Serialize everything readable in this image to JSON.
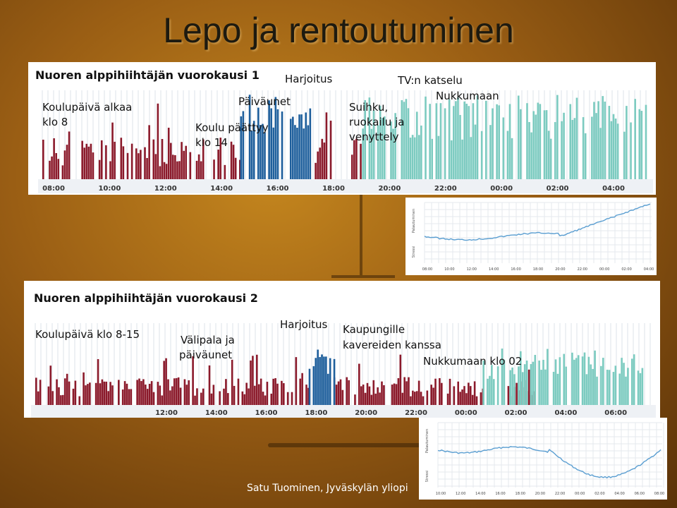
{
  "slide": {
    "title": "Lepo ja rentoutuminen",
    "footer": "Satu Tuominen, Jyväskylän yliopi"
  },
  "chart1": {
    "title": "Nuoren alppihiihtäjän vuorokausi 1",
    "annotations": {
      "school_start_line1": "Koulupäivä alkaa",
      "school_start_line2": "klo 8",
      "nap": "Päiväunet",
      "school_end_line1": "Koulu päättyy",
      "school_end_line2": "klo 14",
      "training": "Harjoitus",
      "tv": "TV:n katselu",
      "shower_line1": "Suihku,",
      "shower_line2": "ruokailu ja",
      "shower_line3": "venyttely",
      "sleep": "Nukkumaan"
    }
  },
  "chart2": {
    "title": "Nuoren alppihiihtäjän vuorokausi 2",
    "annotations": {
      "school": "Koulupäivä klo 8-15",
      "snack_line1": "Välipala ja",
      "snack_line2": "päiväunet",
      "training": "Harjoitus",
      "town_line1": "Kaupungille",
      "town_line2": "kavereiden kanssa",
      "sleep": "Nukkumaan klo 02"
    }
  },
  "mini1": {
    "ylabel_top": "Palautuminen",
    "ylabel_bottom": "Stressi"
  },
  "mini2": {
    "ylabel_top": "Palautuminen",
    "ylabel_bottom": "Stressi"
  },
  "colors": {
    "stress": "#8b1a2b",
    "recovery": "#7ccbc0",
    "exercise": "#1e5f9c",
    "light_blue": "#9cc3e0",
    "curve": "#5a9ed1"
  },
  "chart_data": [
    {
      "type": "bar",
      "title": "Nuoren alppihiihtäjän vuorokausi 1",
      "categories": [
        "08:00",
        "10:00",
        "12:00",
        "14:00",
        "16:00",
        "18:00",
        "20:00",
        "22:00",
        "00:00",
        "02:00",
        "04:00"
      ],
      "series": [
        {
          "color": "#8b1a2b",
          "segments": [
            [
              8.0,
              9.0
            ],
            [
              9.5,
              15.6
            ],
            [
              18.3,
              19.2
            ],
            [
              19.7,
              20.2
            ]
          ]
        },
        {
          "color": "#1e5f9c",
          "segments": [
            [
              15.6,
              18.3
            ]
          ]
        },
        {
          "color": "#7ccbc0",
          "segments": [
            [
              20.2,
              31.2
            ]
          ]
        }
      ]
    },
    {
      "type": "bar",
      "title": "Nuoren alppihiihtäjän vuorokausi 2",
      "categories": [
        "12:00",
        "14:00",
        "16:00",
        "18:00",
        "20:00",
        "22:00",
        "00:00",
        "02:00",
        "04:00",
        "06:00"
      ],
      "series": [
        {
          "color": "#8b1a2b",
          "segments": [
            [
              8.0,
              19.0
            ],
            [
              20.0,
              26.0
            ],
            [
              27.0,
              28.0
            ]
          ]
        },
        {
          "color": "#1e5f9c",
          "segments": [
            [
              19.0,
              20.0
            ]
          ]
        },
        {
          "color": "#7ccbc0",
          "segments": [
            [
              26.0,
              32.5
            ]
          ]
        }
      ]
    },
    {
      "type": "line",
      "categories": [
        "08:00",
        "10:00",
        "12:00",
        "14:00",
        "16:00",
        "18:00",
        "20:00",
        "22:00",
        "00:00",
        "02:00",
        "04:00"
      ]
    },
    {
      "type": "line",
      "categories": [
        "10:00",
        "12:00",
        "14:00",
        "16:00",
        "18:00",
        "20:00",
        "22:00",
        "00:00",
        "02:00",
        "04:00",
        "06:00",
        "08:00"
      ]
    }
  ]
}
